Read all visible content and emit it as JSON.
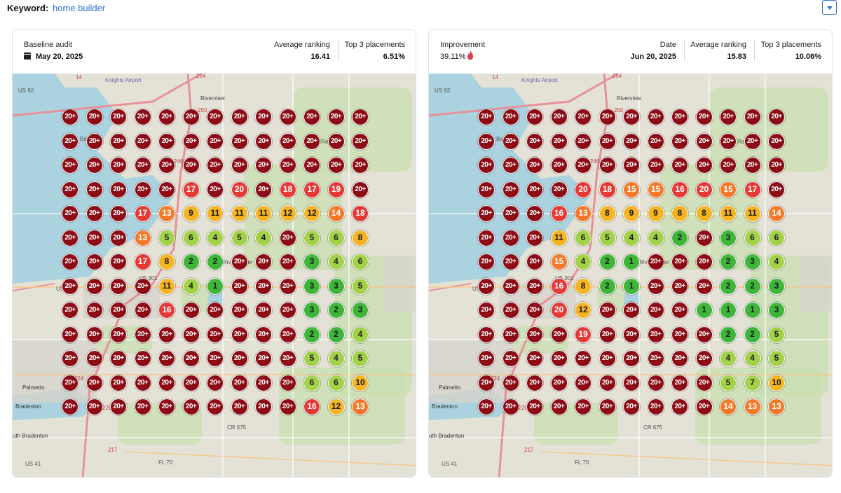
{
  "keyword": {
    "label": "Keyword:",
    "value": "home builder"
  },
  "colors": {
    "rank_20_plus": "#8c0b14",
    "rank_16_20": "#e53935",
    "rank_13_15": "#f4792a",
    "rank_8_12": "#f4b423",
    "rank_4_7": "#a4d14a",
    "rank_1_3": "#3fb53a",
    "link": "#2f6fd6",
    "improvement_icon": "#e0394b"
  },
  "baseline": {
    "title": "Baseline audit",
    "date": "May 20, 2025",
    "avg_label": "Average ranking",
    "avg_value": "16.41",
    "top3_label": "Top 3 placements",
    "top3_value": "6.51%",
    "grid": [
      [
        "20+",
        "20+",
        "20+",
        "20+",
        "20+",
        "20+",
        "20+",
        "20+",
        "20+",
        "20+",
        "20+",
        "20+",
        "20+"
      ],
      [
        "20+",
        "20+",
        "20+",
        "20+",
        "20+",
        "20+",
        "20+",
        "20+",
        "20+",
        "20+",
        "20+",
        "20+",
        "20+"
      ],
      [
        "20+",
        "20+",
        "20+",
        "20+",
        "20+",
        "20+",
        "20+",
        "20+",
        "20+",
        "20+",
        "20+",
        "20+",
        "20+"
      ],
      [
        "20+",
        "20+",
        "20+",
        "20+",
        "20+",
        "17",
        "20+",
        "20",
        "20+",
        "18",
        "17",
        "19",
        "20+"
      ],
      [
        "20+",
        "20+",
        "20+",
        "17",
        "13",
        "9",
        "11",
        "11",
        "11",
        "12",
        "12",
        "14",
        "18"
      ],
      [
        "20+",
        "20+",
        "20+",
        "13",
        "5",
        "6",
        "4",
        "5",
        "4",
        "20+",
        "5",
        "6",
        "8"
      ],
      [
        "20+",
        "20+",
        "20+",
        "17",
        "8",
        "2",
        "2",
        "20+",
        "20+",
        "20+",
        "3",
        "4",
        "6"
      ],
      [
        "20+",
        "20+",
        "20+",
        "20+",
        "11",
        "4",
        "1",
        "20+",
        "20+",
        "20+",
        "3",
        "3",
        "5"
      ],
      [
        "20+",
        "20+",
        "20+",
        "20+",
        "16",
        "20+",
        "20+",
        "20+",
        "20+",
        "20+",
        "3",
        "2",
        "3"
      ],
      [
        "20+",
        "20+",
        "20+",
        "20+",
        "20+",
        "20+",
        "20+",
        "20+",
        "20+",
        "20+",
        "2",
        "2",
        "4"
      ],
      [
        "20+",
        "20+",
        "20+",
        "20+",
        "20+",
        "20+",
        "20+",
        "20+",
        "20+",
        "20+",
        "5",
        "4",
        "5"
      ],
      [
        "20+",
        "20+",
        "20+",
        "20+",
        "20+",
        "20+",
        "20+",
        "20+",
        "20+",
        "20+",
        "6",
        "6",
        "10"
      ],
      [
        "20+",
        "20+",
        "20+",
        "20+",
        "20+",
        "20+",
        "20+",
        "20+",
        "20+",
        "20+",
        "16",
        "12",
        "13"
      ]
    ]
  },
  "current": {
    "improvement_label": "Improvement",
    "improvement_value": "39.11%",
    "date_label": "Date",
    "date_value": "Jun 20, 2025",
    "avg_label": "Average ranking",
    "avg_value": "15.83",
    "top3_label": "Top 3 placements",
    "top3_value": "10.06%",
    "grid": [
      [
        "20+",
        "20+",
        "20+",
        "20+",
        "20+",
        "20+",
        "20+",
        "20+",
        "20+",
        "20+",
        "20+",
        "20+",
        "20+"
      ],
      [
        "20+",
        "20+",
        "20+",
        "20+",
        "20+",
        "20+",
        "20+",
        "20+",
        "20+",
        "20+",
        "20+",
        "20+",
        "20+"
      ],
      [
        "20+",
        "20+",
        "20+",
        "20+",
        "20+",
        "20+",
        "20+",
        "20+",
        "20+",
        "20+",
        "20+",
        "20+",
        "20+"
      ],
      [
        "20+",
        "20+",
        "20+",
        "20+",
        "20",
        "18",
        "15",
        "15",
        "16",
        "20",
        "15",
        "17",
        "20+"
      ],
      [
        "20+",
        "20+",
        "20+",
        "16",
        "13",
        "8",
        "9",
        "9",
        "8",
        "8",
        "11",
        "11",
        "14"
      ],
      [
        "20+",
        "20+",
        "20+",
        "11",
        "6",
        "5",
        "4",
        "4",
        "2",
        "20+",
        "3",
        "6",
        "6"
      ],
      [
        "20+",
        "20+",
        "20+",
        "15",
        "4",
        "2",
        "1",
        "20+",
        "20+",
        "20+",
        "2",
        "3",
        "4"
      ],
      [
        "20+",
        "20+",
        "20+",
        "16",
        "8",
        "2",
        "1",
        "20+",
        "20+",
        "20+",
        "2",
        "2",
        "3"
      ],
      [
        "20+",
        "20+",
        "20+",
        "20",
        "12",
        "20+",
        "20+",
        "20+",
        "20+",
        "1",
        "1",
        "1",
        "3"
      ],
      [
        "20+",
        "20+",
        "20+",
        "20+",
        "19",
        "20+",
        "20+",
        "20+",
        "20+",
        "20+",
        "2",
        "2",
        "5"
      ],
      [
        "20+",
        "20+",
        "20+",
        "20+",
        "20+",
        "20+",
        "20+",
        "20+",
        "20+",
        "20+",
        "4",
        "4",
        "5"
      ],
      [
        "20+",
        "20+",
        "20+",
        "20+",
        "20+",
        "20+",
        "20+",
        "20+",
        "20+",
        "20+",
        "5",
        "7",
        "10"
      ],
      [
        "20+",
        "20+",
        "20+",
        "20+",
        "20+",
        "20+",
        "20+",
        "20+",
        "20+",
        "20+",
        "14",
        "13",
        "13"
      ]
    ]
  },
  "map_labels": {
    "us92": "US 92",
    "knights_airport": "Knights Airport",
    "riverview": "Riverview",
    "reserve": "Reserve",
    "base": "Base",
    "us41": "US 41",
    "us41_south": "US 41",
    "us301": "US 301",
    "palmetto": "Palmetto",
    "bradenton": "Bradenton",
    "south_bradenton": "uth Bradenton",
    "fl70": "FL 70",
    "cr675": "CR 675",
    "road_254": "254",
    "road_250": "250",
    "road_246": "246",
    "road_220": "220",
    "road_224": "224",
    "road_217": "217",
    "road_14": "14",
    "upper_river": "River Upper"
  }
}
